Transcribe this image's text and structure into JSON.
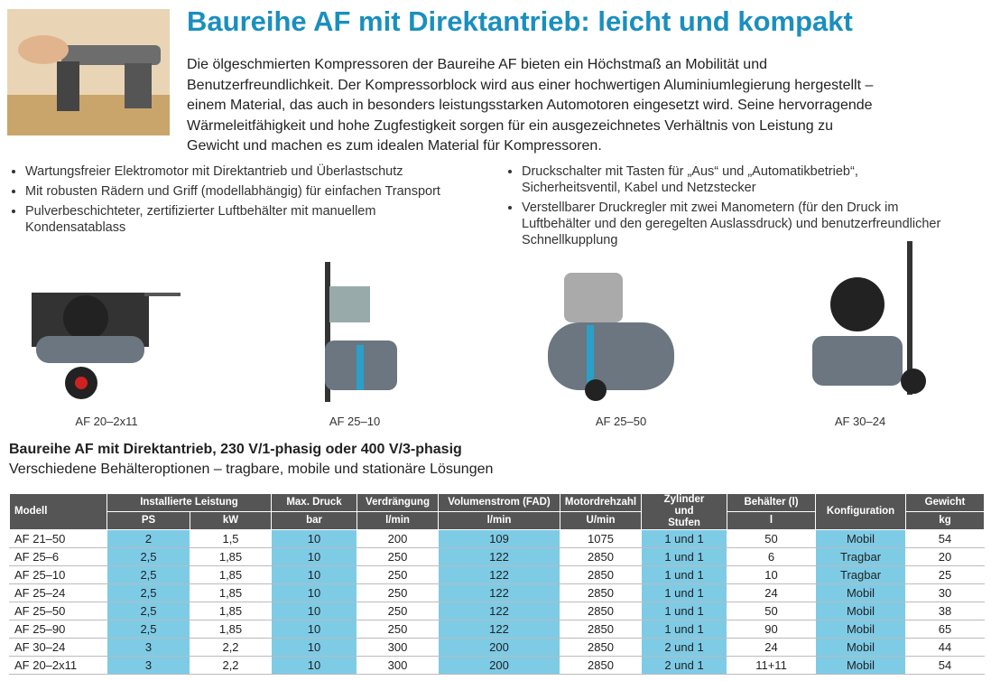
{
  "header": {
    "title": "Baureihe AF mit Direktantrieb: leicht und kompakt",
    "paragraph_lines": [
      "Die ölgeschmierten Kompressoren der Baureihe AF bieten ein Höchstmaß an Mobilität und",
      "Benutzerfreundlichkeit. Der Kompressorblock wird aus einer hochwertigen Aluminiumlegierung hergestellt –",
      "einem Material, das auch in besonders leistungsstarken Automotoren eingesetzt wird. Seine hervorragende",
      "Wärmeleitfähigkeit und hohe Zugfestigkeit sorgen für ein ausgezeichnetes Verhältnis von Leistung zu",
      "Gewicht und machen es zum idealen Material für Kompressoren."
    ]
  },
  "features_left": [
    "Wartungsfreier Elektromotor mit Direktantrieb und Überlastschutz",
    "Mit robusten Rädern und Griff (modellabhängig) für einfachen Transport",
    "Pulverbeschichteter, zertifizierter Luftbehälter mit manuellem Kondensatablass"
  ],
  "features_right": [
    "Druckschalter mit Tasten für „Aus“ und „Automatikbetrieb“, Sicherheitsventil, Kabel und Netzstecker",
    "Verstellbarer Druckregler mit zwei Manometern (für den Druck im Luftbehälter und den geregelten Auslassdruck) und benutzerfreundlicher Schnellkupplung"
  ],
  "products": [
    "AF 20–2x11",
    "AF 25–10",
    "AF 25–50",
    "AF 30–24"
  ],
  "section": {
    "title": "Baureihe AF mit Direktantrieb, 230 V/1-phasig oder 400 V/3-phasig",
    "subtitle": "Verschiedene Behälteroptionen – tragbare, mobile und stationäre Lösungen"
  },
  "table": {
    "header_top": [
      "Modell",
      "Installierte Leistung",
      "Max. Druck",
      "Verdrängung",
      "Volumenstrom (FAD)",
      "Motordrehzahl",
      "Zylinder und Stufen",
      "Behälter (l)",
      "Konfiguration",
      "Gewicht"
    ],
    "header_units": [
      "PS",
      "kW",
      "bar",
      "l/min",
      "l/min",
      "U/min",
      "l",
      "kg"
    ],
    "rows": [
      [
        "AF 21–50",
        "2",
        "1,5",
        "10",
        "200",
        "109",
        "1075",
        "1 und 1",
        "50",
        "Mobil",
        "54"
      ],
      [
        "AF 25–6",
        "2,5",
        "1,85",
        "10",
        "250",
        "122",
        "2850",
        "1 und 1",
        "6",
        "Tragbar",
        "20"
      ],
      [
        "AF 25–10",
        "2,5",
        "1,85",
        "10",
        "250",
        "122",
        "2850",
        "1 und 1",
        "10",
        "Tragbar",
        "25"
      ],
      [
        "AF 25–24",
        "2,5",
        "1,85",
        "10",
        "250",
        "122",
        "2850",
        "1 und 1",
        "24",
        "Mobil",
        "30"
      ],
      [
        "AF 25–50",
        "2,5",
        "1,85",
        "10",
        "250",
        "122",
        "2850",
        "1 und 1",
        "50",
        "Mobil",
        "38"
      ],
      [
        "AF 25–90",
        "2,5",
        "1,85",
        "10",
        "250",
        "122",
        "2850",
        "1 und 1",
        "90",
        "Mobil",
        "65"
      ],
      [
        "AF 30–24",
        "3",
        "2,2",
        "10",
        "300",
        "200",
        "2850",
        "2 und 1",
        "24",
        "Mobil",
        "44"
      ],
      [
        "AF 20–2x11",
        "3",
        "2,2",
        "10",
        "300",
        "200",
        "2850",
        "2 und 1",
        "11+11",
        "Mobil",
        "54"
      ]
    ]
  }
}
